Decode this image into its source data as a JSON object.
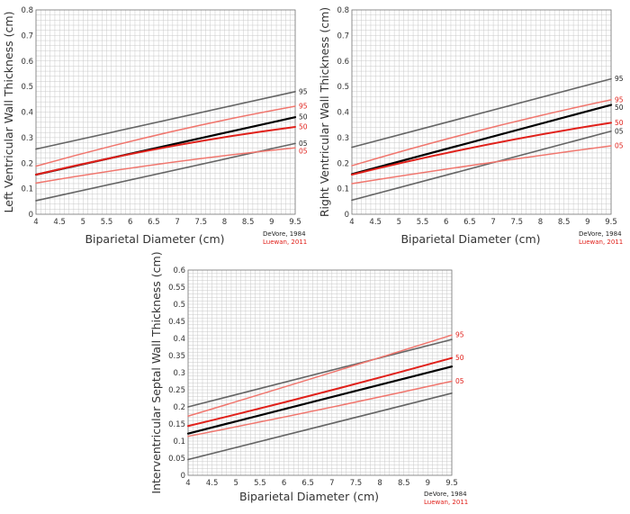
{
  "colors": {
    "devore_black": "#000000",
    "devore_gray": "#555555",
    "luewan_red": "#e0201a",
    "luewan_light": "#f0766e",
    "grid": "#c8c8c8",
    "axis_text": "#333333"
  },
  "chart_data": [
    {
      "type": "line",
      "id": "lv",
      "xlabel": "Biparietal Diameter (cm)",
      "ylabel": "Left Ventricular Wall Thickness (cm)",
      "xlim": [
        4,
        9.5
      ],
      "ylim": [
        0,
        0.8
      ],
      "xticks": [
        "4",
        "4.5",
        "5",
        "5.5",
        "6",
        "6.5",
        "7",
        "7.5",
        "8",
        "8.5",
        "9",
        "9.5"
      ],
      "yticks": [
        "0",
        "0.1",
        "0.2",
        "0.3",
        "0.4",
        "0.5",
        "0.6",
        "0.7",
        "0.8"
      ],
      "grid": true,
      "credits": [
        "DeVore, 1984",
        "Luewan, 2011"
      ],
      "series": [
        {
          "name": "DeVore 95th",
          "source": "DeVore, 1984",
          "percentile": "95",
          "label": "95",
          "style": "gray",
          "x": [
            4,
            9.5
          ],
          "y": [
            0.255,
            0.48
          ]
        },
        {
          "name": "DeVore 50th",
          "source": "DeVore, 1984",
          "percentile": "50",
          "label": "50",
          "style": "black",
          "x": [
            4,
            9.5
          ],
          "y": [
            0.155,
            0.38
          ]
        },
        {
          "name": "DeVore 5th",
          "source": "DeVore, 1984",
          "percentile": "05",
          "label": "05",
          "style": "gray",
          "x": [
            4,
            9.5
          ],
          "y": [
            0.053,
            0.277
          ]
        },
        {
          "name": "Luewan 95th",
          "source": "Luewan, 2011",
          "percentile": "95",
          "label": "95",
          "style": "light",
          "x": [
            4,
            6.75,
            9.5
          ],
          "y": [
            0.188,
            0.318,
            0.423
          ]
        },
        {
          "name": "Luewan 50th",
          "source": "Luewan, 2011",
          "percentile": "50",
          "label": "50",
          "style": "red",
          "x": [
            4,
            6.75,
            9.5
          ],
          "y": [
            0.155,
            0.262,
            0.342
          ]
        },
        {
          "name": "Luewan 5th",
          "source": "Luewan, 2011",
          "percentile": "05",
          "label": "05",
          "style": "light",
          "x": [
            4,
            6.75,
            9.5
          ],
          "y": [
            0.122,
            0.2,
            0.26
          ]
        }
      ]
    },
    {
      "type": "line",
      "id": "rv",
      "xlabel": "Biparietal Diameter (cm)",
      "ylabel": "Right Ventricular Wall Thickness (cm)",
      "xlim": [
        4,
        9.5
      ],
      "ylim": [
        0,
        0.8
      ],
      "xticks": [
        "4",
        "4.5",
        "5",
        "5.5",
        "6",
        "6.5",
        "7",
        "7.5",
        "8",
        "8.5",
        "9",
        "9.5"
      ],
      "yticks": [
        "0",
        "0.1",
        "0.2",
        "0.3",
        "0.4",
        "0.5",
        "0.6",
        "0.7",
        "0.8"
      ],
      "grid": true,
      "credits": [
        "DeVore, 1984",
        "Luewan, 2011"
      ],
      "series": [
        {
          "name": "DeVore 95th",
          "source": "DeVore, 1984",
          "percentile": "95",
          "label": "95",
          "style": "gray",
          "x": [
            4,
            9.5
          ],
          "y": [
            0.262,
            0.53
          ]
        },
        {
          "name": "DeVore 50th",
          "source": "DeVore, 1984",
          "percentile": "50",
          "label": "50",
          "style": "black",
          "x": [
            4,
            9.5
          ],
          "y": [
            0.157,
            0.428
          ]
        },
        {
          "name": "DeVore 5th",
          "source": "DeVore, 1984",
          "percentile": "05",
          "label": "05",
          "style": "gray",
          "x": [
            4,
            9.5
          ],
          "y": [
            0.055,
            0.325
          ]
        },
        {
          "name": "Luewan 95th",
          "source": "Luewan, 2011",
          "percentile": "95",
          "label": "95",
          "style": "light",
          "x": [
            4,
            6.75,
            9.5
          ],
          "y": [
            0.19,
            0.33,
            0.448
          ]
        },
        {
          "name": "Luewan 50th",
          "source": "Luewan, 2011",
          "percentile": "50",
          "label": "50",
          "style": "red",
          "x": [
            4,
            6.75,
            9.5
          ],
          "y": [
            0.155,
            0.268,
            0.358
          ]
        },
        {
          "name": "Luewan 5th",
          "source": "Luewan, 2011",
          "percentile": "05",
          "label": "05",
          "style": "light",
          "x": [
            4,
            6.75,
            9.5
          ],
          "y": [
            0.12,
            0.197,
            0.268
          ]
        }
      ]
    },
    {
      "type": "line",
      "id": "ivs",
      "xlabel": "Biparietal Diameter (cm)",
      "ylabel": "Interventricular Septal  Wall Thickness (cm)",
      "xlim": [
        4,
        9.5
      ],
      "ylim": [
        0,
        0.6
      ],
      "xticks": [
        "4",
        "4.5",
        "5",
        "5.5",
        "6",
        "6.5",
        "7",
        "7.5",
        "8",
        "8.5",
        "9",
        "9.5"
      ],
      "yticks": [
        "0",
        "0.05",
        "0.1",
        "0.15",
        "0.2",
        "0.25",
        "0.3",
        "0.35",
        "0.4",
        "0.45",
        "0.5",
        "0.55",
        "0.6"
      ],
      "grid": true,
      "credits": [
        "DeVore, 1984",
        "Luewan, 2011"
      ],
      "series": [
        {
          "name": "DeVore 95th",
          "source": "DeVore, 1984",
          "percentile": "95",
          "label": "",
          "style": "gray",
          "x": [
            4,
            9.5
          ],
          "y": [
            0.2,
            0.397
          ]
        },
        {
          "name": "DeVore 50th",
          "source": "DeVore, 1984",
          "percentile": "50",
          "label": "",
          "style": "black",
          "x": [
            4,
            9.5
          ],
          "y": [
            0.122,
            0.318
          ]
        },
        {
          "name": "DeVore 5th",
          "source": "DeVore, 1984",
          "percentile": "05",
          "label": "",
          "style": "gray",
          "x": [
            4,
            9.5
          ],
          "y": [
            0.046,
            0.24
          ]
        },
        {
          "name": "Luewan 95th",
          "source": "Luewan, 2011",
          "percentile": "95",
          "label": "95",
          "style": "light",
          "x": [
            4,
            6.75,
            9.5
          ],
          "y": [
            0.173,
            0.29,
            0.41
          ]
        },
        {
          "name": "Luewan 50th",
          "source": "Luewan, 2011",
          "percentile": "50",
          "label": "50",
          "style": "red",
          "x": [
            4,
            6.75,
            9.5
          ],
          "y": [
            0.144,
            0.24,
            0.343
          ]
        },
        {
          "name": "Luewan 5th",
          "source": "Luewan, 2011",
          "percentile": "05",
          "label": "05",
          "style": "light",
          "x": [
            4,
            6.75,
            9.5
          ],
          "y": [
            0.114,
            0.192,
            0.275
          ]
        }
      ]
    }
  ]
}
